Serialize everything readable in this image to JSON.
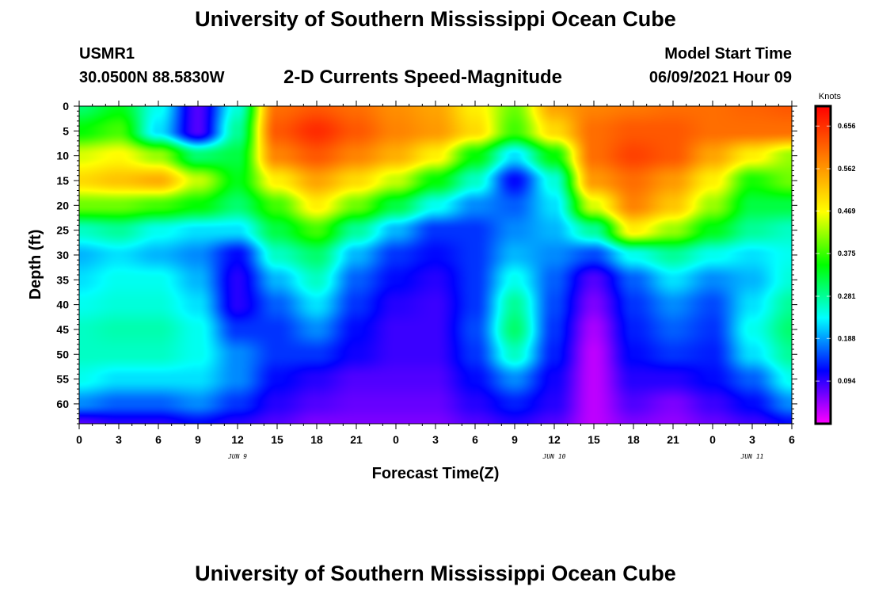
{
  "header": {
    "title": "University of Southern Mississippi Ocean Cube",
    "station_id": "USMR1",
    "station_coords": "30.0500N  88.5830W",
    "subtitle": "2-D Currents Speed-Magnitude",
    "start_label": "Model Start Time",
    "start_value": "06/09/2021 Hour 09"
  },
  "footer": {
    "title": "University of Southern Mississippi Ocean Cube"
  },
  "colors": {
    "scale": [
      "#ff00ff",
      "#0000ff",
      "#00ffff",
      "#00ff00",
      "#ffff00",
      "#ff8000",
      "#ff0000"
    ],
    "colorbar_border": "#000000"
  },
  "chart_data": {
    "type": "heatmap",
    "xlabel": "Forecast Time(Z)",
    "ylabel": "Depth (ft)",
    "x_tick_labels": [
      "0",
      "3",
      "6",
      "9",
      "12",
      "15",
      "18",
      "21",
      "0",
      "3",
      "6",
      "9",
      "12",
      "15",
      "18",
      "21",
      "0",
      "3",
      "6"
    ],
    "x_range_hours": [
      0,
      54
    ],
    "date_labels": [
      {
        "label": "JUN 9",
        "at_hour": 12
      },
      {
        "label": "JUN 10",
        "at_hour": 36
      },
      {
        "label": "JUN 11",
        "at_hour": 51
      }
    ],
    "y_tick_labels": [
      "0",
      "5",
      "10",
      "15",
      "20",
      "25",
      "30",
      "35",
      "40",
      "45",
      "50",
      "55",
      "60"
    ],
    "y_range": [
      0,
      64
    ],
    "y_inverted": true,
    "colorbar": {
      "unit": "Knots",
      "tick_values": [
        0.094,
        0.188,
        0.281,
        0.375,
        0.469,
        0.562,
        0.656
      ],
      "tick_labels": [
        "0.094",
        "0.188",
        "0.281",
        "0.375",
        "0.469",
        "0.562",
        "0.656"
      ],
      "range": [
        0.0,
        0.7
      ]
    },
    "time_hours": [
      0,
      3,
      6,
      9,
      12,
      15,
      18,
      21,
      24,
      27,
      30,
      33,
      36,
      39,
      42,
      45,
      48,
      51,
      54
    ],
    "depth_ft": [
      0,
      5,
      10,
      15,
      20,
      25,
      30,
      35,
      40,
      45,
      50,
      55,
      60,
      64
    ],
    "speed_knots": [
      [
        0.3,
        0.34,
        0.24,
        0.08,
        0.25,
        0.6,
        0.62,
        0.6,
        0.57,
        0.55,
        0.48,
        0.4,
        0.55,
        0.58,
        0.59,
        0.6,
        0.6,
        0.61,
        0.62
      ],
      [
        0.35,
        0.38,
        0.22,
        0.08,
        0.28,
        0.62,
        0.66,
        0.62,
        0.58,
        0.56,
        0.5,
        0.38,
        0.5,
        0.6,
        0.62,
        0.62,
        0.6,
        0.6,
        0.6
      ],
      [
        0.45,
        0.47,
        0.42,
        0.3,
        0.32,
        0.58,
        0.62,
        0.58,
        0.54,
        0.48,
        0.35,
        0.22,
        0.35,
        0.6,
        0.64,
        0.62,
        0.55,
        0.48,
        0.42
      ],
      [
        0.5,
        0.52,
        0.54,
        0.44,
        0.34,
        0.48,
        0.55,
        0.5,
        0.44,
        0.35,
        0.26,
        0.12,
        0.25,
        0.56,
        0.6,
        0.56,
        0.48,
        0.36,
        0.4
      ],
      [
        0.4,
        0.4,
        0.38,
        0.35,
        0.3,
        0.38,
        0.48,
        0.4,
        0.32,
        0.24,
        0.18,
        0.16,
        0.22,
        0.45,
        0.58,
        0.52,
        0.42,
        0.32,
        0.32
      ],
      [
        0.26,
        0.28,
        0.24,
        0.22,
        0.22,
        0.32,
        0.38,
        0.28,
        0.2,
        0.14,
        0.14,
        0.18,
        0.2,
        0.28,
        0.48,
        0.42,
        0.34,
        0.28,
        0.26
      ],
      [
        0.2,
        0.22,
        0.2,
        0.18,
        0.12,
        0.26,
        0.3,
        0.2,
        0.14,
        0.12,
        0.14,
        0.2,
        0.18,
        0.15,
        0.24,
        0.28,
        0.24,
        0.22,
        0.24
      ],
      [
        0.22,
        0.24,
        0.24,
        0.2,
        0.1,
        0.2,
        0.26,
        0.16,
        0.12,
        0.1,
        0.14,
        0.24,
        0.16,
        0.08,
        0.16,
        0.22,
        0.18,
        0.2,
        0.25
      ],
      [
        0.24,
        0.25,
        0.25,
        0.22,
        0.1,
        0.16,
        0.22,
        0.14,
        0.1,
        0.09,
        0.14,
        0.28,
        0.15,
        0.06,
        0.14,
        0.18,
        0.15,
        0.22,
        0.28
      ],
      [
        0.26,
        0.27,
        0.27,
        0.24,
        0.14,
        0.14,
        0.18,
        0.12,
        0.09,
        0.09,
        0.15,
        0.3,
        0.14,
        0.04,
        0.13,
        0.16,
        0.14,
        0.24,
        0.3
      ],
      [
        0.26,
        0.26,
        0.26,
        0.24,
        0.18,
        0.14,
        0.14,
        0.11,
        0.09,
        0.09,
        0.14,
        0.26,
        0.13,
        0.03,
        0.12,
        0.14,
        0.13,
        0.22,
        0.28
      ],
      [
        0.24,
        0.22,
        0.22,
        0.22,
        0.18,
        0.12,
        0.1,
        0.08,
        0.08,
        0.08,
        0.12,
        0.18,
        0.11,
        0.03,
        0.1,
        0.1,
        0.12,
        0.16,
        0.24
      ],
      [
        0.18,
        0.16,
        0.16,
        0.18,
        0.14,
        0.1,
        0.08,
        0.07,
        0.07,
        0.07,
        0.1,
        0.13,
        0.1,
        0.03,
        0.08,
        0.06,
        0.09,
        0.12,
        0.18
      ],
      [
        0.08,
        0.1,
        0.1,
        0.12,
        0.1,
        0.08,
        0.06,
        0.06,
        0.06,
        0.06,
        0.08,
        0.1,
        0.08,
        0.03,
        0.06,
        0.05,
        0.07,
        0.09,
        0.12
      ]
    ]
  }
}
